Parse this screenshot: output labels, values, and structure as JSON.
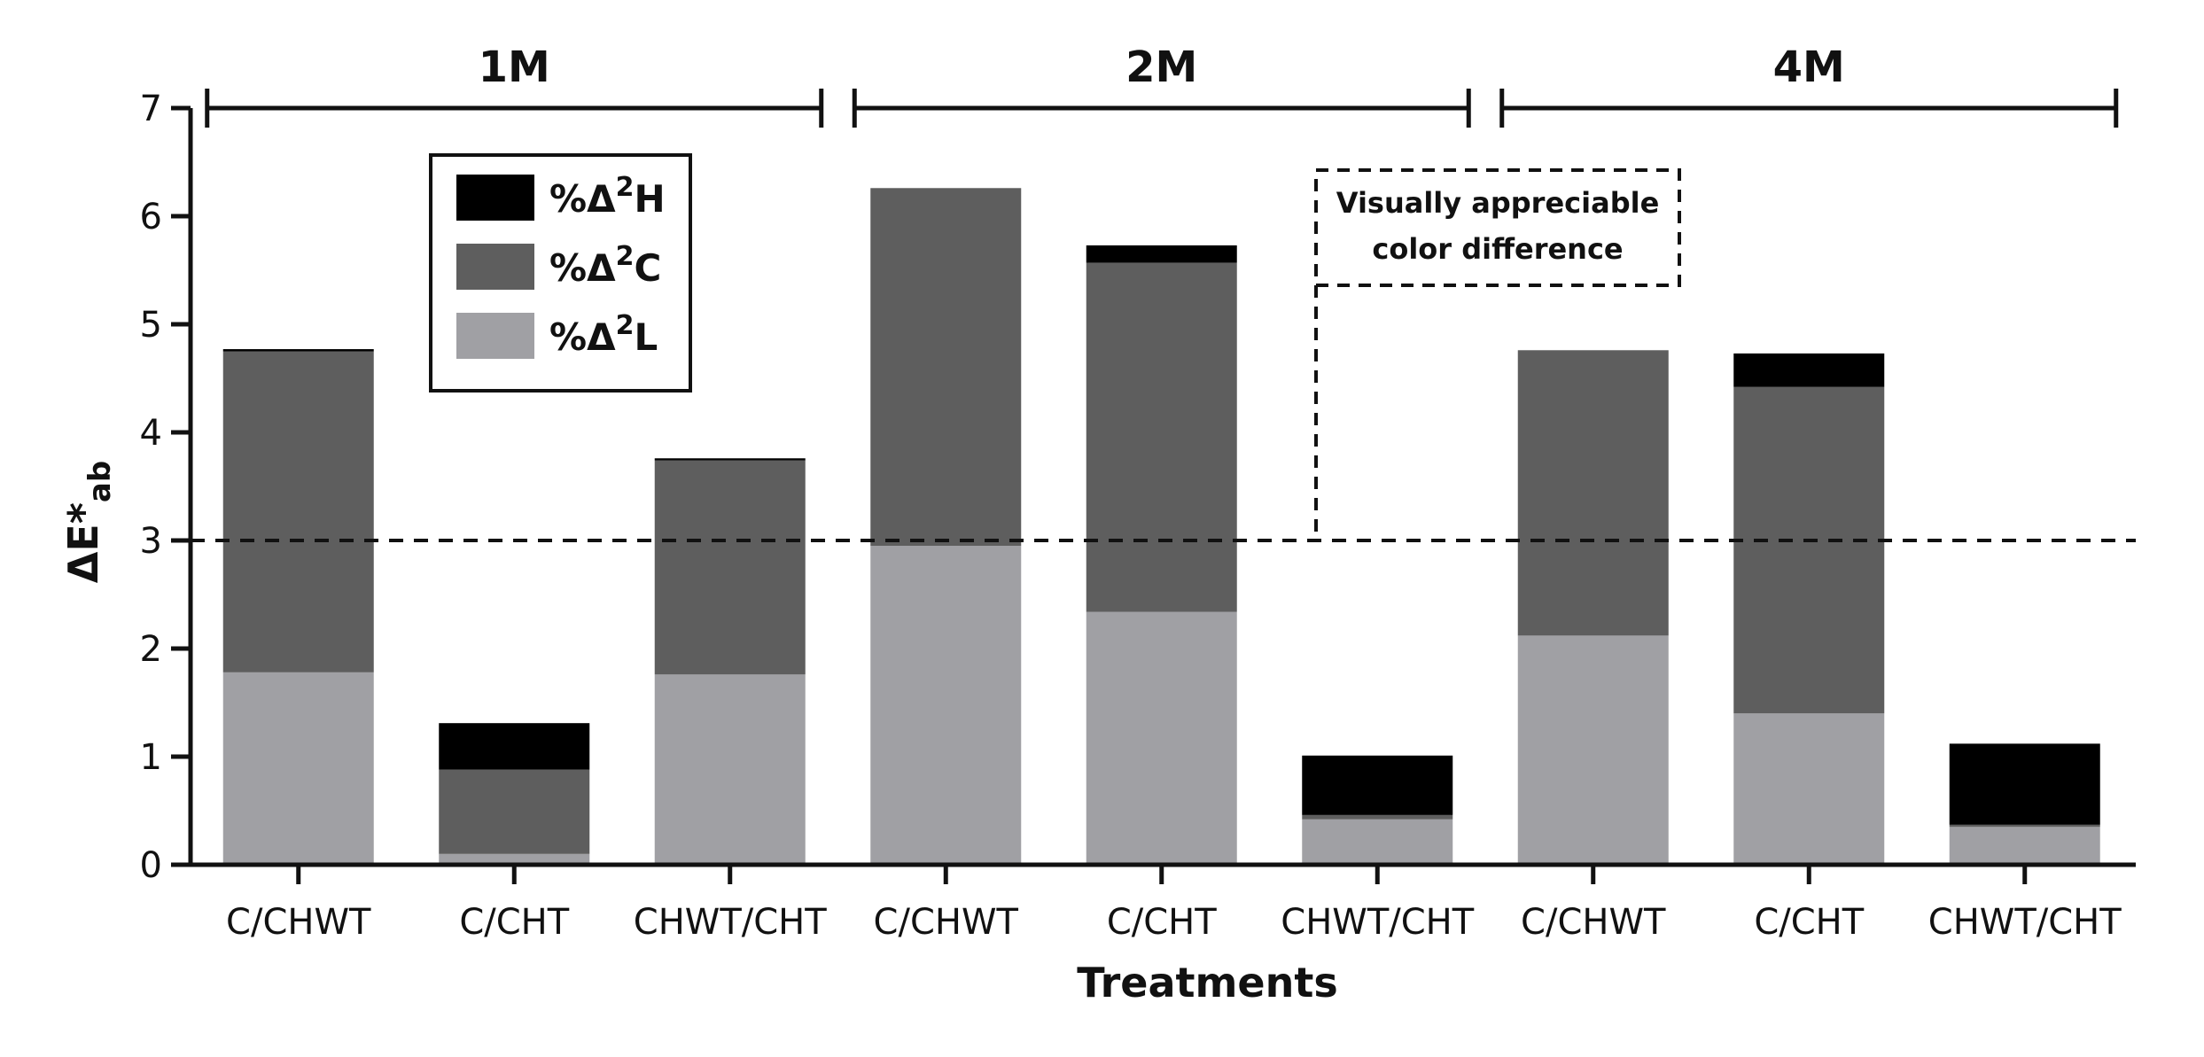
{
  "chart_data": {
    "type": "bar",
    "stacked": true,
    "title": "",
    "xlabel": "Treatments",
    "ylabel": "ΔE*ab",
    "ylabel_main": "ΔE*",
    "ylabel_sub": "ab",
    "ylim": [
      0,
      7
    ],
    "yticks": [
      0,
      1,
      2,
      3,
      4,
      5,
      6,
      7
    ],
    "categories": [
      "C/CHWT",
      "C/CHT",
      "CHWT/CHT",
      "C/CHWT",
      "C/CHT",
      "CHWT/CHT",
      "C/CHWT",
      "C/CHT",
      "CHWT/CHT"
    ],
    "groups": [
      {
        "label": "1M",
        "categories": [
          0,
          1,
          2
        ]
      },
      {
        "label": "2M",
        "categories": [
          3,
          4,
          5
        ]
      },
      {
        "label": "4M",
        "categories": [
          6,
          7,
          8
        ]
      }
    ],
    "series": [
      {
        "name": "%Δ²L",
        "base": "%Δ",
        "sup": "2",
        "letter": "L",
        "color": "#a0a0a4",
        "values": [
          1.78,
          0.1,
          1.76,
          2.95,
          2.34,
          0.42,
          2.12,
          1.4,
          0.35
        ]
      },
      {
        "name": "%Δ²C",
        "base": "%Δ",
        "sup": "2",
        "letter": "C",
        "color": "#5e5e5e",
        "values": [
          2.97,
          0.78,
          1.98,
          3.31,
          3.23,
          0.04,
          2.64,
          3.02,
          0.02
        ]
      },
      {
        "name": "%Δ²H",
        "base": "%Δ",
        "sup": "2",
        "letter": "H",
        "color": "#000000",
        "values": [
          0.02,
          0.43,
          0.02,
          0.0,
          0.16,
          0.55,
          0.0,
          0.31,
          0.75
        ]
      }
    ],
    "threshold": {
      "value": 3,
      "style": "dashed"
    },
    "annotation": {
      "lines": [
        "Visually appreciable",
        "color difference"
      ]
    },
    "legend_position": "top-left"
  }
}
